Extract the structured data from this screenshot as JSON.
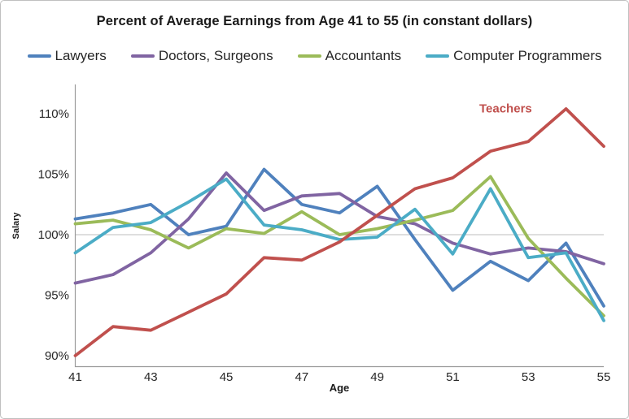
{
  "figure": {
    "title": "Percent of Average Earnings from Age 41 to 55 (in constant dollars)"
  },
  "legend": {
    "position": "top",
    "items": [
      {
        "label": "Lawyers",
        "color": "#4F81BD"
      },
      {
        "label": "Doctors, Surgeons",
        "color": "#8064A2"
      },
      {
        "label": "Accountants",
        "color": "#9BBB59"
      },
      {
        "label": "Computer Programmers",
        "color": "#4BACC6"
      }
    ]
  },
  "annotation": {
    "text": "Teachers",
    "color": "#C0504D",
    "age": 52.4,
    "value": 110.5
  },
  "axes": {
    "x": {
      "label": "Age",
      "ticks": [
        41,
        43,
        45,
        47,
        49,
        51,
        53,
        55
      ],
      "min": 41,
      "max": 55
    },
    "y": {
      "label": "Salary",
      "ticks": [
        110,
        105,
        100,
        95,
        90
      ],
      "tick_suffix": "%",
      "gridline_value": 100
    }
  },
  "chart_data": {
    "type": "line",
    "title": "Percent of Average Earnings from Age 41 to 55 (in constant dollars)",
    "xlabel": "Age",
    "ylabel": "Salary",
    "ylim": [
      88,
      112.5
    ],
    "grid": "single horizontal gridline at 100%",
    "legend_position": "top (Teachers labeled directly on chart in red)",
    "x": [
      41,
      42,
      43,
      44,
      45,
      46,
      47,
      48,
      49,
      50,
      51,
      52,
      53,
      54,
      55
    ],
    "series": [
      {
        "name": "Lawyers",
        "color": "#4F81BD",
        "values": [
          101.3,
          101.8,
          102.5,
          100.0,
          100.7,
          105.4,
          102.5,
          101.8,
          104.0,
          99.6,
          95.4,
          97.8,
          96.2,
          99.3,
          94.1
        ]
      },
      {
        "name": "Doctors, Surgeons",
        "color": "#8064A2",
        "values": [
          96.0,
          96.7,
          98.5,
          101.3,
          105.1,
          102.0,
          103.2,
          103.4,
          101.5,
          100.9,
          99.3,
          98.4,
          98.9,
          98.6,
          97.6
        ]
      },
      {
        "name": "Accountants",
        "color": "#9BBB59",
        "values": [
          100.9,
          101.2,
          100.4,
          98.9,
          100.5,
          100.1,
          101.9,
          100.0,
          100.5,
          101.2,
          102.0,
          104.8,
          99.7,
          96.4,
          93.3
        ]
      },
      {
        "name": "Computer Programmers",
        "color": "#4BACC6",
        "values": [
          98.5,
          100.6,
          101.0,
          102.7,
          104.6,
          100.8,
          100.4,
          99.6,
          99.8,
          102.1,
          98.4,
          103.8,
          98.1,
          98.5,
          92.9
        ]
      },
      {
        "name": "Teachers",
        "color": "#C0504D",
        "values": [
          90.0,
          92.4,
          92.1,
          93.6,
          95.1,
          98.1,
          97.9,
          99.4,
          101.6,
          103.8,
          104.7,
          106.9,
          107.7,
          110.4,
          107.3
        ]
      }
    ]
  }
}
